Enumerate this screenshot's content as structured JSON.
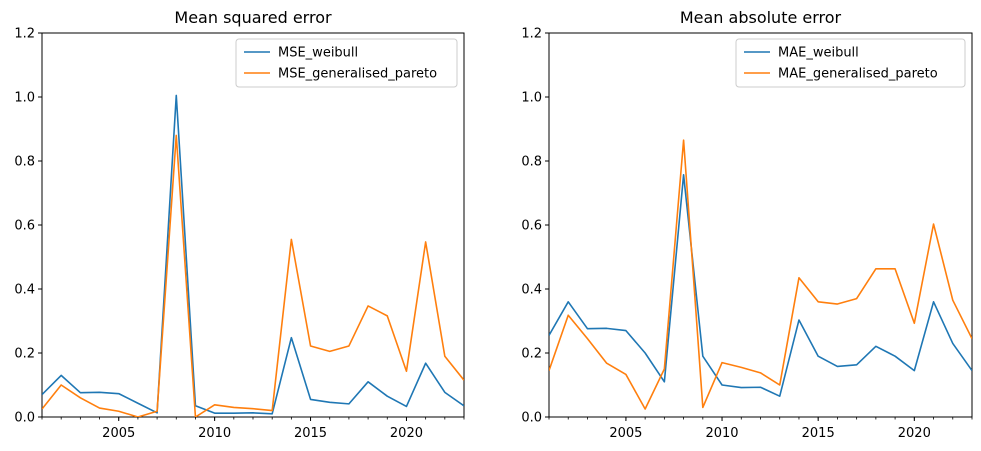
{
  "chart_data": [
    {
      "type": "line",
      "title": "Mean squared error",
      "xlabel": "",
      "ylabel": "",
      "xlim": [
        2001,
        2023
      ],
      "ylim": [
        0,
        1.2
      ],
      "xticks": [
        2005,
        2010,
        2015,
        2020
      ],
      "yticks": [
        "0.0",
        "0.2",
        "0.4",
        "0.6",
        "0.8",
        "1.0",
        "1.2"
      ],
      "legend_position": "top-right",
      "grid": false,
      "x": [
        2001,
        2002,
        2003,
        2004,
        2005,
        2006,
        2007,
        2008,
        2009,
        2010,
        2011,
        2012,
        2013,
        2014,
        2015,
        2016,
        2017,
        2018,
        2019,
        2020,
        2021,
        2022,
        2023
      ],
      "series": [
        {
          "name": "MSE_weibull",
          "color": "#1f77b4",
          "values": [
            0.07,
            0.13,
            0.076,
            0.077,
            0.073,
            0.043,
            0.013,
            1.005,
            0.035,
            0.012,
            0.012,
            0.013,
            0.01,
            0.248,
            0.055,
            0.046,
            0.041,
            0.11,
            0.065,
            0.033,
            0.168,
            0.077,
            0.035
          ]
        },
        {
          "name": "MSE_generalised_pareto",
          "color": "#ff7f0e",
          "values": [
            0.025,
            0.1,
            0.06,
            0.028,
            0.018,
            0.0,
            0.018,
            0.88,
            0.0,
            0.038,
            0.03,
            0.026,
            0.02,
            0.555,
            0.222,
            0.205,
            0.222,
            0.347,
            0.316,
            0.143,
            0.547,
            0.19,
            0.115
          ]
        }
      ]
    },
    {
      "type": "line",
      "title": "Mean absolute error",
      "xlabel": "",
      "ylabel": "",
      "xlim": [
        2001,
        2023
      ],
      "ylim": [
        0,
        1.2
      ],
      "xticks": [
        2005,
        2010,
        2015,
        2020
      ],
      "yticks": [
        "0.0",
        "0.2",
        "0.4",
        "0.6",
        "0.8",
        "1.0",
        "1.2"
      ],
      "legend_position": "top-right",
      "grid": false,
      "x": [
        2001,
        2002,
        2003,
        2004,
        2005,
        2006,
        2007,
        2008,
        2009,
        2010,
        2011,
        2012,
        2013,
        2014,
        2015,
        2016,
        2017,
        2018,
        2019,
        2020,
        2021,
        2022,
        2023
      ],
      "series": [
        {
          "name": "MAE_weibull",
          "color": "#1f77b4",
          "values": [
            0.255,
            0.36,
            0.276,
            0.277,
            0.27,
            0.2,
            0.11,
            0.757,
            0.19,
            0.1,
            0.092,
            0.093,
            0.065,
            0.303,
            0.19,
            0.158,
            0.163,
            0.221,
            0.19,
            0.145,
            0.36,
            0.23,
            0.145
          ]
        },
        {
          "name": "MAE_generalised_pareto",
          "color": "#ff7f0e",
          "values": [
            0.145,
            0.318,
            0.245,
            0.168,
            0.133,
            0.025,
            0.15,
            0.865,
            0.03,
            0.17,
            0.155,
            0.138,
            0.1,
            0.435,
            0.36,
            0.353,
            0.37,
            0.463,
            0.463,
            0.293,
            0.603,
            0.365,
            0.245
          ]
        }
      ]
    }
  ]
}
